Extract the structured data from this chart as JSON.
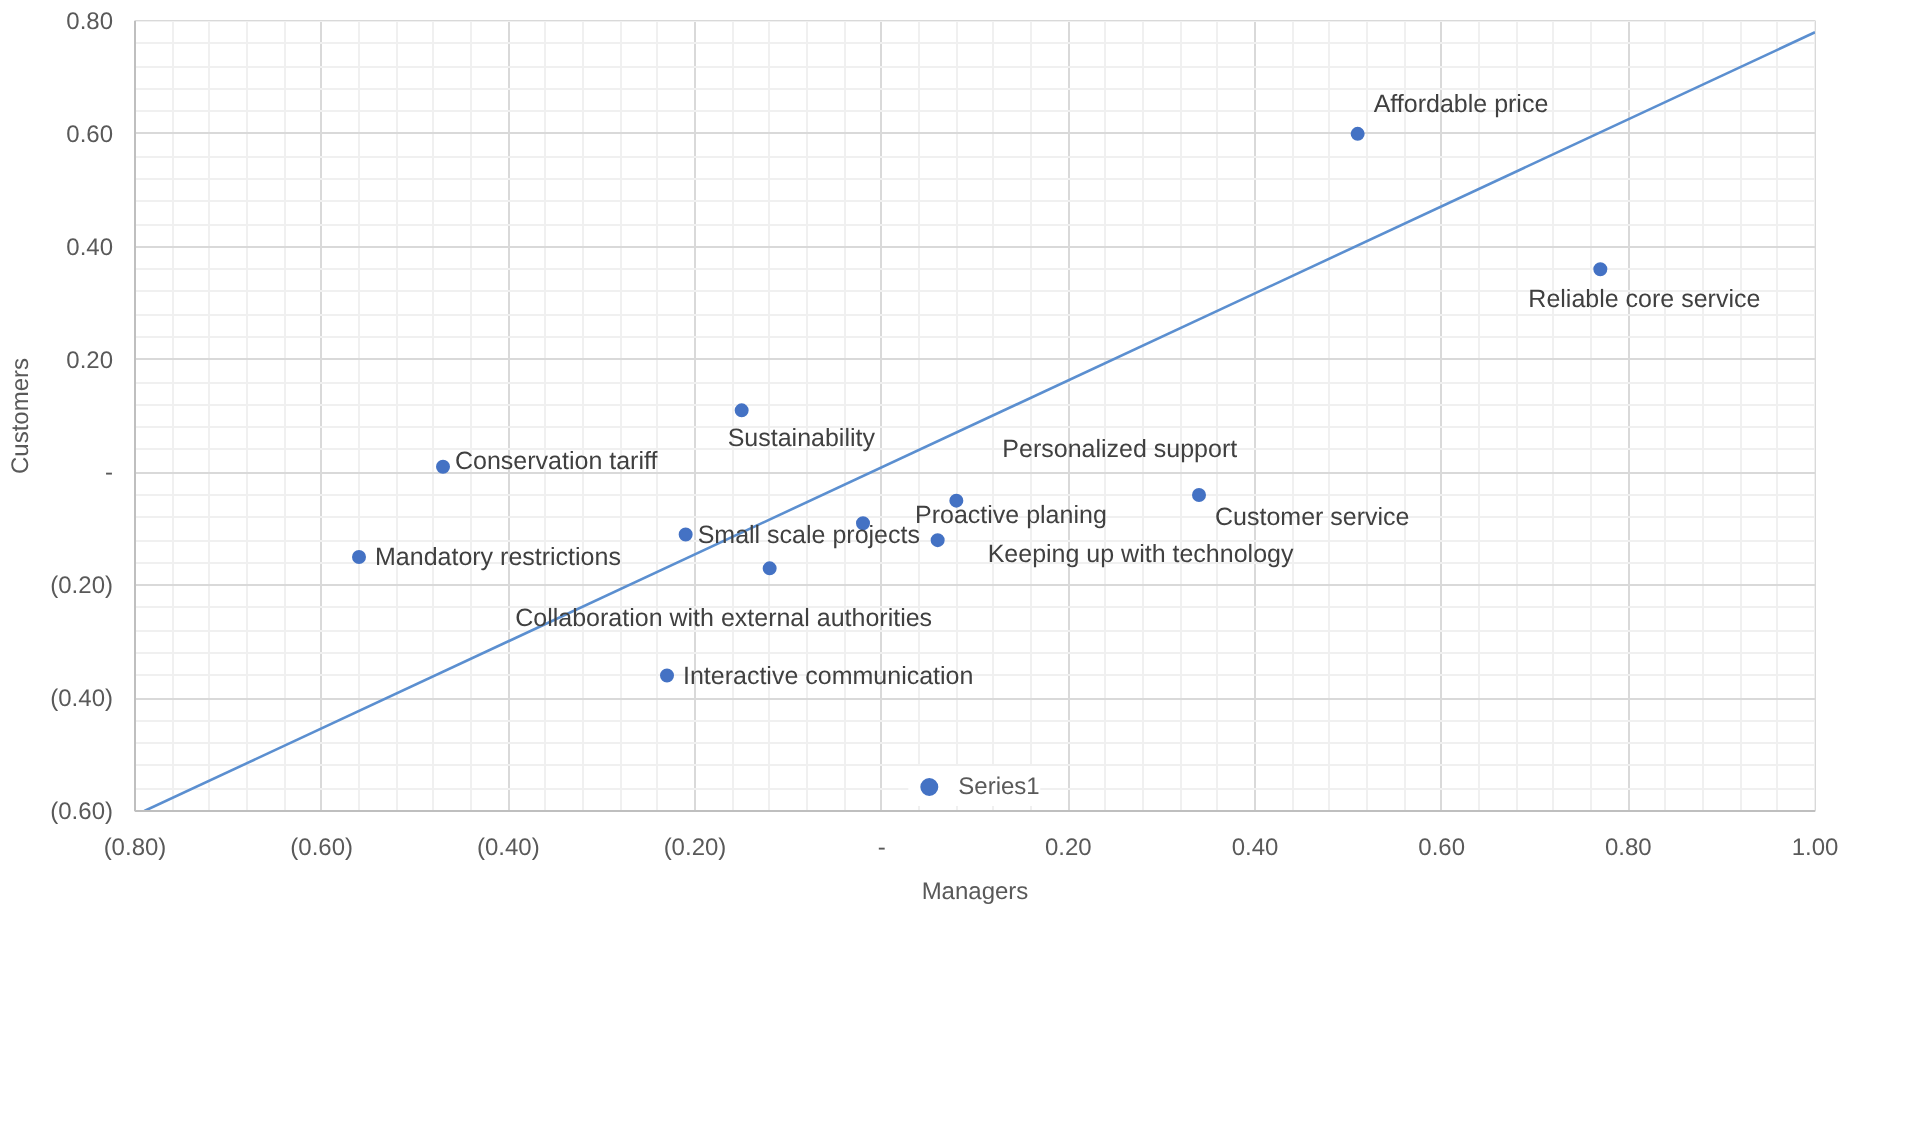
{
  "chart_data": {
    "type": "scatter",
    "xlabel": "Managers",
    "ylabel": "Customers",
    "x": [
      0.51,
      0.77,
      -0.15,
      -0.47,
      0.08,
      0.34,
      -0.02,
      -0.21,
      0.06,
      -0.56,
      -0.12,
      -0.23
    ],
    "series": [
      {
        "name": "Series1",
        "color": "#4472c4",
        "values": [
          0.6,
          0.36,
          0.11,
          0.01,
          -0.05,
          -0.04,
          -0.09,
          -0.11,
          -0.12,
          -0.15,
          -0.17,
          -0.36
        ]
      },
      {
        "type": "line",
        "marker": "none",
        "color": "#5b8fd0",
        "x": [
          -0.79,
          1.0
        ],
        "values": [
          -0.6,
          0.78
        ]
      }
    ],
    "annotations": [
      {
        "text": "Affordable price",
        "x": 0.51,
        "y": 0.6
      },
      {
        "text": "Reliable core service",
        "x": 0.77,
        "y": 0.36
      },
      {
        "text": "Sustainability",
        "x": -0.15,
        "y": 0.11
      },
      {
        "text": "Conservation tariff",
        "x": -0.47,
        "y": 0.01
      },
      {
        "text": "Personalized support",
        "x": 0.08,
        "y": -0.05
      },
      {
        "text": "Customer service",
        "x": 0.34,
        "y": -0.04
      },
      {
        "text": "Proactive planing",
        "x": -0.02,
        "y": -0.09
      },
      {
        "text": "Small scale projects",
        "x": -0.21,
        "y": -0.11
      },
      {
        "text": "Keeping up with technology",
        "x": 0.06,
        "y": -0.12
      },
      {
        "text": "Mandatory restrictions",
        "x": -0.56,
        "y": -0.15
      },
      {
        "text": "Collaboration with external authorities",
        "x": -0.12,
        "y": -0.17
      },
      {
        "text": "Interactive communication",
        "x": -0.23,
        "y": -0.36
      }
    ],
    "xlim": [
      -0.8,
      1.0
    ],
    "xticks": [
      {
        "value": -0.8,
        "label": "(0.80)"
      },
      {
        "value": -0.6,
        "label": "(0.60)"
      },
      {
        "value": -0.4,
        "label": "(0.40)"
      },
      {
        "value": -0.2,
        "label": "(0.20)"
      },
      {
        "value": 0,
        "label": "-"
      },
      {
        "value": 0.2,
        "label": "0.20"
      },
      {
        "value": 0.4,
        "label": "0.40"
      },
      {
        "value": 0.6,
        "label": "0.60"
      },
      {
        "value": 0.8,
        "label": "0.80"
      },
      {
        "value": 1.0,
        "label": "1.00"
      }
    ],
    "ylim": [
      -0.6,
      0.8
    ],
    "yticks": [
      {
        "value": -0.6,
        "label": "(0.60)"
      },
      {
        "value": -0.4,
        "label": "(0.40)"
      },
      {
        "value": -0.2,
        "label": "(0.20)"
      },
      {
        "value": 0,
        "label": "-"
      },
      {
        "value": 0.2,
        "label": "0.20"
      },
      {
        "value": 0.4,
        "label": "0.40"
      },
      {
        "value": 0.6,
        "label": "0.60"
      },
      {
        "value": 0.8,
        "label": "0.80"
      }
    ],
    "grid": true,
    "legend": "bottom",
    "marker": "circle",
    "line_style": "solid"
  }
}
